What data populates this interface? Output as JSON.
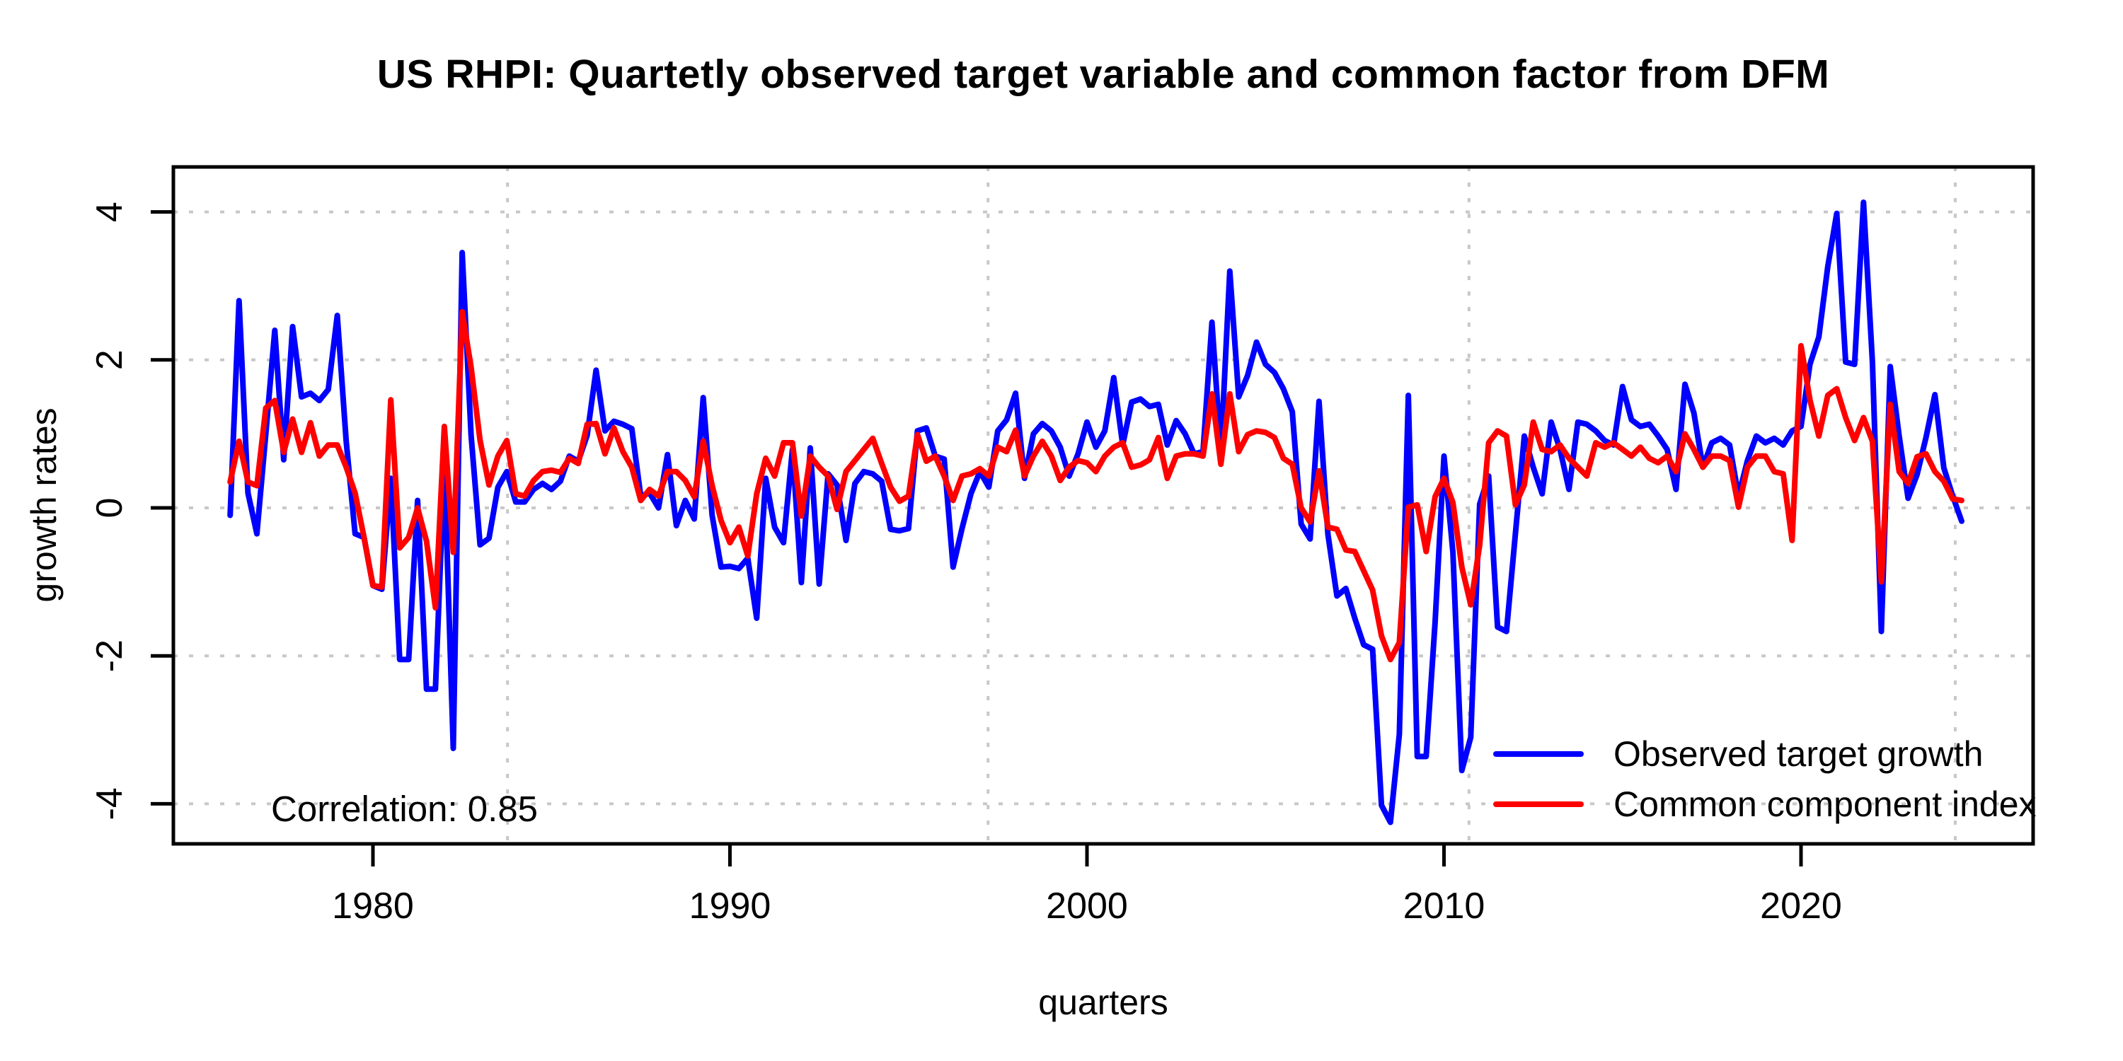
{
  "chart_data": {
    "type": "line",
    "title": "US RHPI: Quartetly observed target variable and common factor from DFM",
    "xlabel": "quarters",
    "ylabel": "growth rates",
    "annotation": "Correlation: 0.85",
    "x_start": 1976.0,
    "x_step": 0.25,
    "xlim": [
      1974.4,
      2026.5
    ],
    "ylim": [
      -4.55,
      4.6
    ],
    "x_ticks": [
      1980,
      1990,
      2000,
      2010,
      2020
    ],
    "y_ticks": [
      -4,
      -2,
      0,
      2,
      4
    ],
    "grid": true,
    "legend_position": "bottom-right",
    "background": "#ffffff",
    "grid_color": "#c8c8c8",
    "axis_color": "#000000",
    "series": [
      {
        "name": "Observed target growth",
        "color": "#0000ff",
        "values": [
          -0.1,
          2.8,
          0.2,
          -0.35,
          1.0,
          2.4,
          0.65,
          2.45,
          1.5,
          1.55,
          1.45,
          1.6,
          2.6,
          0.9,
          -0.35,
          -0.4,
          -1.05,
          -1.1,
          0.4,
          -2.05,
          -2.05,
          0.1,
          -2.45,
          -2.45,
          0.6,
          -3.25,
          3.45,
          0.98,
          -0.5,
          -0.41,
          0.28,
          0.49,
          0.08,
          0.08,
          0.25,
          0.33,
          0.25,
          0.36,
          0.7,
          0.63,
          0.98,
          1.86,
          1.04,
          1.17,
          1.13,
          1.07,
          0.16,
          0.2,
          0.0,
          0.72,
          -0.24,
          0.1,
          -0.15,
          1.49,
          -0.1,
          -0.8,
          -0.79,
          -0.82,
          -0.68,
          -1.49,
          0.4,
          -0.26,
          -0.47,
          0.79,
          -1.01,
          0.81,
          -1.03,
          0.46,
          0.31,
          -0.44,
          0.33,
          0.49,
          0.46,
          0.36,
          -0.29,
          -0.31,
          -0.28,
          1.04,
          1.08,
          0.7,
          0.66,
          -0.8,
          -0.28,
          0.19,
          0.49,
          0.28,
          1.04,
          1.19,
          1.55,
          0.4,
          1.0,
          1.14,
          1.04,
          0.82,
          0.43,
          0.73,
          1.16,
          0.82,
          1.04,
          1.76,
          0.85,
          1.43,
          1.47,
          1.37,
          1.4,
          0.85,
          1.18,
          1.0,
          0.73,
          0.76,
          2.51,
          0.75,
          3.2,
          1.5,
          1.79,
          2.24,
          1.94,
          1.83,
          1.61,
          1.3,
          -0.22,
          -0.42,
          1.44,
          -0.36,
          -1.19,
          -1.09,
          -1.49,
          -1.85,
          -1.91,
          -4.02,
          -4.25,
          -3.06,
          1.52,
          -3.36,
          -3.36,
          -1.55,
          0.7,
          -0.6,
          -3.55,
          -3.1,
          0.05,
          0.43,
          -1.61,
          -1.67,
          -0.35,
          0.97,
          0.55,
          0.19,
          1.16,
          0.79,
          0.25,
          1.16,
          1.13,
          1.04,
          0.91,
          0.85,
          1.64,
          1.19,
          1.1,
          1.13,
          0.97,
          0.79,
          0.25,
          1.67,
          1.28,
          0.55,
          0.88,
          0.94,
          0.85,
          0.16,
          0.64,
          0.97,
          0.88,
          0.94,
          0.85,
          1.04,
          1.1,
          1.94,
          2.31,
          3.26,
          3.98,
          1.97,
          1.94,
          4.13,
          1.97,
          -1.67,
          1.91,
          0.97,
          0.13,
          0.45,
          0.95,
          1.53,
          0.54,
          0.16,
          -0.18
        ]
      },
      {
        "name": "Common component index",
        "color": "#ff0000",
        "values": [
          0.35,
          0.9,
          0.35,
          0.3,
          1.35,
          1.45,
          0.75,
          1.2,
          0.75,
          1.15,
          0.7,
          0.85,
          0.85,
          0.55,
          0.2,
          -0.4,
          -1.05,
          -1.07,
          1.46,
          -0.54,
          -0.4,
          0.0,
          -0.45,
          -1.35,
          1.1,
          -0.6,
          2.65,
          1.9,
          0.91,
          0.31,
          0.7,
          0.91,
          0.19,
          0.16,
          0.37,
          0.49,
          0.51,
          0.48,
          0.67,
          0.6,
          1.13,
          1.14,
          0.73,
          1.08,
          0.76,
          0.55,
          0.1,
          0.25,
          0.16,
          0.49,
          0.49,
          0.37,
          0.15,
          0.9,
          0.3,
          -0.17,
          -0.47,
          -0.26,
          -0.65,
          0.19,
          0.67,
          0.43,
          0.88,
          0.88,
          -0.11,
          0.7,
          0.55,
          0.43,
          -0.02,
          0.49,
          0.64,
          0.79,
          0.94,
          0.6,
          0.28,
          0.09,
          0.16,
          0.99,
          0.63,
          0.7,
          0.43,
          0.1,
          0.43,
          0.46,
          0.53,
          0.43,
          0.82,
          0.76,
          1.05,
          0.43,
          0.7,
          0.9,
          0.7,
          0.37,
          0.55,
          0.64,
          0.61,
          0.49,
          0.7,
          0.82,
          0.88,
          0.55,
          0.58,
          0.65,
          0.95,
          0.4,
          0.7,
          0.73,
          0.73,
          0.7,
          1.54,
          0.59,
          1.54,
          0.76,
          0.99,
          1.04,
          1.02,
          0.95,
          0.67,
          0.59,
          0.0,
          -0.19,
          0.5,
          -0.26,
          -0.29,
          -0.57,
          -0.59,
          -0.85,
          -1.11,
          -1.73,
          -2.05,
          -1.82,
          0.01,
          0.04,
          -0.59,
          0.15,
          0.4,
          0.07,
          -0.8,
          -1.31,
          -0.5,
          0.88,
          1.04,
          0.97,
          0.04,
          0.31,
          1.16,
          0.79,
          0.76,
          0.85,
          0.67,
          0.55,
          0.43,
          0.88,
          0.82,
          0.88,
          0.79,
          0.7,
          0.82,
          0.67,
          0.61,
          0.7,
          0.49,
          1.0,
          0.79,
          0.55,
          0.7,
          0.7,
          0.64,
          0.01,
          0.55,
          0.7,
          0.7,
          0.49,
          0.46,
          -0.44,
          2.19,
          1.46,
          0.97,
          1.52,
          1.61,
          1.22,
          0.91,
          1.22,
          0.9,
          -1.0,
          1.4,
          0.49,
          0.33,
          0.69,
          0.73,
          0.49,
          0.36,
          0.12,
          0.1
        ]
      }
    ]
  }
}
